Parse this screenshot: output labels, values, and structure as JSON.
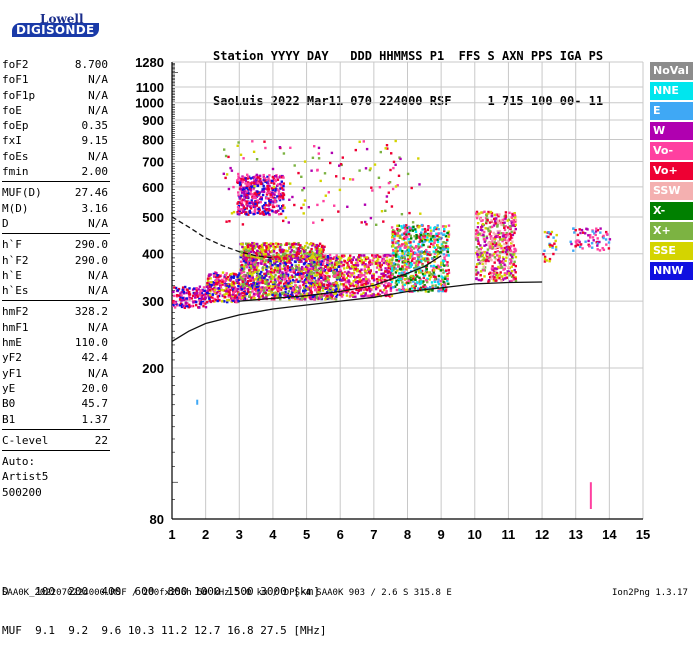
{
  "logo": {
    "line1": "Lowell",
    "line2": "DIGISONDE"
  },
  "header": {
    "row1": "Station YYYY DAY   DDD HHMMSS P1  FFS S AXN PPS IGA PS",
    "row2": "SaoLuis 2022 Mar11 070 224000 RSF     1 715 100 00- 11"
  },
  "params_a": [
    {
      "label": "foF2",
      "value": "8.700"
    },
    {
      "label": "foF1",
      "value": "N/A"
    },
    {
      "label": "foF1p",
      "value": "N/A"
    },
    {
      "label": "foE",
      "value": "N/A"
    },
    {
      "label": "foEp",
      "value": "0.35"
    },
    {
      "label": "fxI",
      "value": "9.15"
    },
    {
      "label": "foEs",
      "value": "N/A"
    },
    {
      "label": "fmin",
      "value": "2.00"
    }
  ],
  "params_b": [
    {
      "label": "MUF(D)",
      "value": "27.46"
    },
    {
      "label": "M(D)",
      "value": "3.16"
    },
    {
      "label": "D",
      "value": "N/A"
    }
  ],
  "params_c": [
    {
      "label": "h`F",
      "value": "290.0"
    },
    {
      "label": "h`F2",
      "value": "290.0"
    },
    {
      "label": "h`E",
      "value": "N/A"
    },
    {
      "label": "h`Es",
      "value": "N/A"
    }
  ],
  "params_d": [
    {
      "label": "hmF2",
      "value": "328.2"
    },
    {
      "label": "hmF1",
      "value": "N/A"
    },
    {
      "label": "hmE",
      "value": "110.0"
    },
    {
      "label": "yF2",
      "value": "42.4"
    },
    {
      "label": "yF1",
      "value": "N/A"
    },
    {
      "label": "yE",
      "value": "20.0"
    },
    {
      "label": "B0",
      "value": "45.7"
    },
    {
      "label": "B1",
      "value": "1.37"
    }
  ],
  "params_e": [
    {
      "label": "C-level",
      "value": "22"
    }
  ],
  "auto": {
    "line1": "Auto:",
    "line2": "Artist5",
    "line3": "500200"
  },
  "legend": [
    {
      "label": "NoVal",
      "color": "#8c8c8c"
    },
    {
      "label": "NNE",
      "color": "#00e6ee"
    },
    {
      "label": "E",
      "color": "#3fa8f5"
    },
    {
      "label": "W",
      "color": "#b000b0"
    },
    {
      "label": "Vo-",
      "color": "#ff40a0"
    },
    {
      "label": "Vo+",
      "color": "#ee0033"
    },
    {
      "label": "SSW",
      "color": "#f4b0b0"
    },
    {
      "label": "X-",
      "color": "#008000"
    },
    {
      "label": "X+",
      "color": "#7cb342"
    },
    {
      "label": "SSE",
      "color": "#d4d400"
    },
    {
      "label": "NNW",
      "color": "#1010e0"
    }
  ],
  "footer": {
    "d_row": "D    100  200  400  600  800 1000 1500 3000 [km]",
    "muf_row": "MUF  9.1  9.2  9.6 10.3 11.2 12.7 16.8 27.5 [MHz]",
    "source": "SAA0K_2022070224000.RSF / 200fx256h 50 kHz 5.0 km / DPS-4 SAA0K 903 / 2.6 S 315.8 E",
    "version": "Ion2Png 1.3.17"
  },
  "chart_data": {
    "type": "scatter",
    "xlabel": "",
    "ylabel": "",
    "xlim": [
      1,
      15
    ],
    "xticks": [
      1,
      2,
      3,
      4,
      5,
      6,
      7,
      8,
      9,
      10,
      11,
      12,
      13,
      14,
      15
    ],
    "yscale": "log",
    "ylim": [
      80,
      1280
    ],
    "yticks": [
      80,
      200,
      300,
      400,
      500,
      600,
      700,
      800,
      900,
      1000,
      1100,
      1280
    ],
    "grid": true,
    "clusters": [
      {
        "x": [
          1.0,
          2.0
        ],
        "y": [
          290,
          330
        ],
        "colors": [
          "#1010e0",
          "#b000b0",
          "#ee0033",
          "#ff40a0"
        ],
        "density": 160
      },
      {
        "x": [
          2.0,
          3.0
        ],
        "y": [
          300,
          360
        ],
        "colors": [
          "#ee0033",
          "#b000b0",
          "#1010e0",
          "#ff40a0",
          "#d4d400"
        ],
        "density": 260
      },
      {
        "x": [
          3.0,
          6.0
        ],
        "y": [
          305,
          400
        ],
        "colors": [
          "#ee0033",
          "#ff40a0",
          "#b000b0",
          "#1010e0",
          "#d4d400",
          "#7cb342"
        ],
        "density": 1300
      },
      {
        "x": [
          3.0,
          5.5
        ],
        "y": [
          390,
          430
        ],
        "colors": [
          "#d4d400",
          "#7cb342",
          "#b000b0",
          "#ee0033"
        ],
        "density": 350
      },
      {
        "x": [
          2.9,
          4.3
        ],
        "y": [
          510,
          650
        ],
        "colors": [
          "#b000b0",
          "#ee0033",
          "#ff40a0",
          "#1010e0"
        ],
        "density": 420
      },
      {
        "x": [
          6.0,
          7.5
        ],
        "y": [
          310,
          400
        ],
        "colors": [
          "#ee0033",
          "#ff40a0",
          "#b000b0",
          "#d4d400"
        ],
        "density": 420
      },
      {
        "x": [
          7.5,
          9.2
        ],
        "y": [
          320,
          480
        ],
        "colors": [
          "#d4d400",
          "#7cb342",
          "#00e6ee",
          "#3fa8f5",
          "#ee0033",
          "#ff40a0",
          "#008000"
        ],
        "density": 700
      },
      {
        "x": [
          10.0,
          11.2
        ],
        "y": [
          340,
          520
        ],
        "colors": [
          "#ee0033",
          "#ff40a0",
          "#d4d400",
          "#7cb342",
          "#b000b0",
          "#f4b0b0"
        ],
        "density": 480
      },
      {
        "x": [
          12.0,
          12.4
        ],
        "y": [
          380,
          460
        ],
        "colors": [
          "#ee0033",
          "#3fa8f5",
          "#d4d400"
        ],
        "density": 30
      },
      {
        "x": [
          12.8,
          14.0
        ],
        "y": [
          410,
          470
        ],
        "colors": [
          "#b000b0",
          "#ff40a0",
          "#ee0033",
          "#3fa8f5"
        ],
        "density": 70
      },
      {
        "x": [
          2.5,
          8.5
        ],
        "y": [
          480,
          800
        ],
        "colors": [
          "#b000b0",
          "#ff40a0",
          "#d4d400",
          "#7cb342",
          "#ee0033"
        ],
        "density": 140
      }
    ],
    "traces": [
      {
        "name": "",
        "x": [
          1.0,
          1.5,
          2.0,
          3.0,
          4.0,
          5.0,
          6.0,
          7.0,
          8.0,
          9.0,
          10.0,
          11.0,
          12.0
        ],
        "y": [
          235,
          250,
          262,
          276,
          286,
          293,
          300,
          307,
          318,
          325,
          333,
          336,
          337
        ],
        "style": "solid"
      },
      {
        "name": "",
        "x": [
          1.0,
          1.5,
          2.0,
          2.5,
          3.0,
          3.5,
          4.0
        ],
        "y": [
          500,
          470,
          440,
          420,
          405,
          395,
          390
        ],
        "style": "dashed"
      },
      {
        "name": "",
        "x": [
          3.0,
          4.0,
          5.0,
          6.0,
          7.0,
          8.0,
          8.5,
          9.0
        ],
        "y": [
          300,
          305,
          310,
          318,
          330,
          355,
          370,
          395
        ],
        "style": "solid"
      }
    ],
    "marks": [
      {
        "x": 13.45,
        "y_from": 85,
        "y_to": 100,
        "color": "#ff40a0"
      },
      {
        "x": 1.75,
        "y_from": 160,
        "y_to": 165,
        "color": "#3fa8f5"
      }
    ]
  }
}
